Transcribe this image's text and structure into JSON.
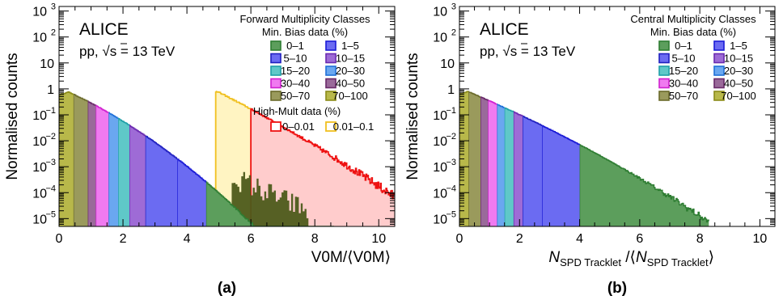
{
  "chart_data": [
    {
      "type": "area",
      "panel_label": "(a)",
      "experiment": "ALICE",
      "system": "pp, ",
      "energy_label": "s = 13 TeV",
      "xlabel": "V0M/⟨V0M⟩",
      "ylabel": "Normalised counts",
      "yscale": "log",
      "xlim": [
        0,
        10.5
      ],
      "ylim": [
        5e-06,
        1500
      ],
      "xticks": [
        0,
        2,
        4,
        6,
        8,
        10
      ],
      "yticks": [
        {
          "value": 1e-05,
          "base": "10",
          "exp": "−5"
        },
        {
          "value": 0.0001,
          "base": "10",
          "exp": "−4"
        },
        {
          "value": 0.001,
          "base": "10",
          "exp": "−3"
        },
        {
          "value": 0.01,
          "base": "10",
          "exp": "−2"
        },
        {
          "value": 0.1,
          "base": "10",
          "exp": "−1"
        },
        {
          "value": 1,
          "base": "1",
          "exp": ""
        },
        {
          "value": 10,
          "base": "10",
          "exp": ""
        },
        {
          "value": 100,
          "base": "10",
          "exp": "2"
        },
        {
          "value": 1000,
          "base": "10",
          "exp": "3"
        }
      ],
      "legend_title": "Forward Multiplicity Classes",
      "legend_subtitle": "Min. Bias data (%)",
      "legend_subtitle2": "High-Mult data (%)",
      "min_bias_classes": [
        {
          "label": "0–1",
          "from": 4.6,
          "to": 10.5,
          "fill": "#5c9e5c",
          "edge": "#2e7d32"
        },
        {
          "label": "1–5",
          "from": 3.7,
          "to": 4.6,
          "fill": "#6b6bf2",
          "edge": "#1a1ad6"
        },
        {
          "label": "5–10",
          "from": 2.7,
          "to": 3.7,
          "fill": "#6b6bf2",
          "edge": "#2020c0"
        },
        {
          "label": "10–15",
          "from": 2.2,
          "to": 2.7,
          "fill": "#9e6bd6",
          "edge": "#6a2ab0"
        },
        {
          "label": "15–20",
          "from": 1.85,
          "to": 2.2,
          "fill": "#5fc8c8",
          "edge": "#20a0a8"
        },
        {
          "label": "20–30",
          "from": 1.55,
          "to": 1.85,
          "fill": "#6aa7f0",
          "edge": "#2070d8"
        },
        {
          "label": "30–40",
          "from": 1.15,
          "to": 1.55,
          "fill": "#f07af0",
          "edge": "#d020d0"
        },
        {
          "label": "40–50",
          "from": 0.9,
          "to": 1.15,
          "fill": "#9a6a9a",
          "edge": "#6a2a6a"
        },
        {
          "label": "50–70",
          "from": 0.45,
          "to": 0.9,
          "fill": "#9a9a5c",
          "edge": "#6a6a2a"
        },
        {
          "label": "70–100",
          "from": 0.0,
          "to": 0.45,
          "fill": "#b8b84a",
          "edge": "#8a8a18"
        }
      ],
      "high_mult_classes": [
        {
          "label": "0–0.01",
          "from": 6.0,
          "to": 10.5,
          "fill": "#ffcccc",
          "edge": "#ee1111"
        },
        {
          "label": "0.01–0.1",
          "from": 4.9,
          "to": 6.0,
          "fill": "#fff4c2",
          "edge": "#f0c020"
        }
      ]
    },
    {
      "type": "area",
      "panel_label": "(b)",
      "experiment": "ALICE",
      "system": "pp, ",
      "energy_label": "s = 13 TeV",
      "xlabel_main": "N",
      "xlabel_sub": "SPD Tracklet",
      "xlabel_mid": " /⟨N",
      "xlabel_sub2": "SPD Tracklet",
      "xlabel_end": "⟩",
      "ylabel": "Normalised counts",
      "yscale": "log",
      "xlim": [
        0,
        10.5
      ],
      "ylim": [
        5e-06,
        1500
      ],
      "xticks": [
        0,
        2,
        4,
        6,
        8,
        10
      ],
      "legend_title": "Central Multiplicity Classes",
      "legend_subtitle": "Min. Bias data (%)",
      "min_bias_classes": [
        {
          "label": "0–1",
          "from": 4.0,
          "to": 8.3,
          "fill": "#5c9e5c",
          "edge": "#2e7d32"
        },
        {
          "label": "1–5",
          "from": 2.75,
          "to": 4.0,
          "fill": "#6b6bf2",
          "edge": "#1a1ad6"
        },
        {
          "label": "5–10",
          "from": 2.1,
          "to": 2.75,
          "fill": "#6b6bf2",
          "edge": "#2020c0"
        },
        {
          "label": "10–15",
          "from": 1.8,
          "to": 2.1,
          "fill": "#9e6bd6",
          "edge": "#6a2ab0"
        },
        {
          "label": "15–20",
          "from": 1.5,
          "to": 1.8,
          "fill": "#5fc8c8",
          "edge": "#20a0a8"
        },
        {
          "label": "20–30",
          "from": 1.25,
          "to": 1.5,
          "fill": "#6aa7f0",
          "edge": "#2070d8"
        },
        {
          "label": "30–40",
          "from": 0.95,
          "to": 1.25,
          "fill": "#f07af0",
          "edge": "#d020d0"
        },
        {
          "label": "40–50",
          "from": 0.7,
          "to": 0.95,
          "fill": "#9a6a9a",
          "edge": "#6a2a6a"
        },
        {
          "label": "50–70",
          "from": 0.3,
          "to": 0.7,
          "fill": "#9a9a5c",
          "edge": "#6a6a2a"
        },
        {
          "label": "70–100",
          "from": 0.0,
          "to": 0.3,
          "fill": "#b8b84a",
          "edge": "#8a8a18"
        }
      ]
    }
  ]
}
